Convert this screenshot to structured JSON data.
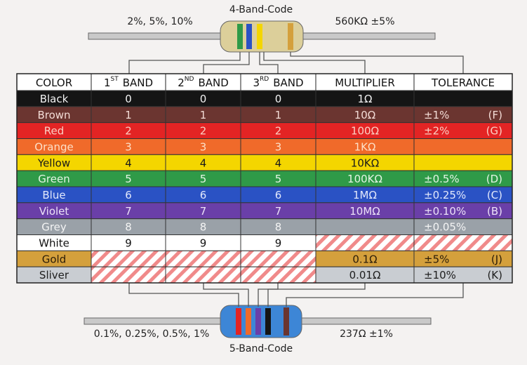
{
  "top": {
    "title": "4-Band-Code",
    "left_label": "2%, 5%, 10%",
    "right_label": "560KΩ ±5%"
  },
  "bottom": {
    "title": "5-Band-Code",
    "left_label": "0.1%, 0.25%, 0.5%, 1%",
    "right_label": "237Ω ±1%"
  },
  "table": {
    "header": [
      {
        "label": "COLOR"
      },
      {
        "num": "1",
        "sup": "ST",
        "label": "BAND"
      },
      {
        "num": "2",
        "sup": "ND",
        "label": "BAND"
      },
      {
        "num": "3",
        "sup": "RD",
        "label": "BAND"
      },
      {
        "label": "MULTIPLIER"
      },
      {
        "label": "TOLERANCE"
      }
    ],
    "rows": [
      {
        "color": "Black",
        "bands": [
          "0",
          "0",
          "0"
        ],
        "multiplier": "1Ω",
        "tolerance": null,
        "code": null,
        "bg": "#151515",
        "fg": "#f2f2f2",
        "hatched": []
      },
      {
        "color": "Brown",
        "bands": [
          "1",
          "1",
          "1"
        ],
        "multiplier": "10Ω",
        "tolerance": "±1%",
        "code": "(F)",
        "bg": "#6b3530",
        "fg": "#f3dcd6",
        "hatched": []
      },
      {
        "color": "Red",
        "bands": [
          "2",
          "2",
          "2"
        ],
        "multiplier": "100Ω",
        "tolerance": "±2%",
        "code": "(G)",
        "bg": "#e32424",
        "fg": "#fbd0c4",
        "hatched": []
      },
      {
        "color": "Orange",
        "bands": [
          "3",
          "3",
          "3"
        ],
        "multiplier": "1KΩ",
        "tolerance": null,
        "code": null,
        "bg": "#f06a2a",
        "fg": "#fde0c8",
        "hatched": []
      },
      {
        "color": "Yellow",
        "bands": [
          "4",
          "4",
          "4"
        ],
        "multiplier": "10KΩ",
        "tolerance": null,
        "code": null,
        "bg": "#f4d600",
        "fg": "#1a1a1a",
        "hatched": []
      },
      {
        "color": "Green",
        "bands": [
          "5",
          "5",
          "5"
        ],
        "multiplier": "100KΩ",
        "tolerance": "±0.5%",
        "code": "(D)",
        "bg": "#2f9a48",
        "fg": "#e5f5e5",
        "hatched": []
      },
      {
        "color": "Blue",
        "bands": [
          "6",
          "6",
          "6"
        ],
        "multiplier": "1MΩ",
        "tolerance": "±0.25%",
        "code": "(C)",
        "bg": "#2a52c4",
        "fg": "#e2e8fb",
        "hatched": []
      },
      {
        "color": "Violet",
        "bands": [
          "7",
          "7",
          "7"
        ],
        "multiplier": "10MΩ",
        "tolerance": "±0.10%",
        "code": "(B)",
        "bg": "#6a3fa8",
        "fg": "#ece2f8",
        "hatched": []
      },
      {
        "color": "Grey",
        "bands": [
          "8",
          "8",
          "8"
        ],
        "multiplier": null,
        "tolerance": "±0.05%",
        "code": null,
        "bg": "#9aa1a8",
        "fg": "#f4f4f4",
        "hatched": []
      },
      {
        "color": "White",
        "bands": [
          "9",
          "9",
          "9"
        ],
        "multiplier": null,
        "tolerance": null,
        "code": null,
        "bg": "#ffffff",
        "fg": "#111111",
        "hatched": [
          4,
          5
        ]
      },
      {
        "color": "Gold",
        "bands": [
          null,
          null,
          null
        ],
        "multiplier": "0.1Ω",
        "tolerance": "±5%",
        "code": "(J)",
        "bg": "#d4a03c",
        "fg": "#2a1c08",
        "hatched": [
          1,
          2,
          3
        ]
      },
      {
        "color": "Sliver",
        "bands": [
          null,
          null,
          null
        ],
        "multiplier": "0.01Ω",
        "tolerance": "±10%",
        "code": "(K)",
        "bg": "#c9cdd2",
        "fg": "#1e1e1e",
        "hatched": [
          1,
          2,
          3
        ]
      }
    ]
  }
}
